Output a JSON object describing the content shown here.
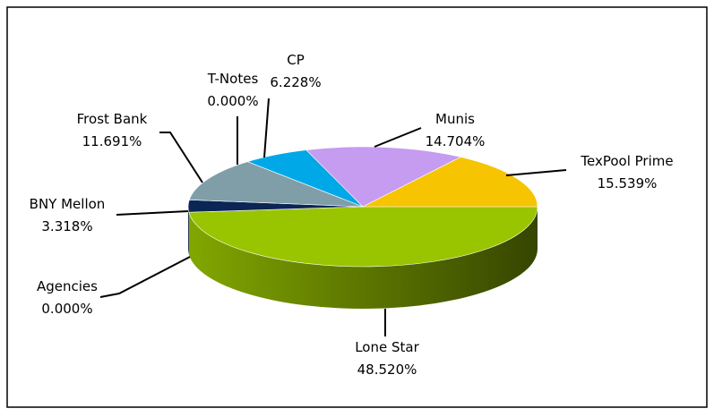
{
  "chart_data": {
    "type": "pie",
    "categories": [
      "Lone Star",
      "Agencies",
      "BNY Mellon",
      "Frost Bank",
      "T-Notes",
      "CP",
      "Munis",
      "TexPool Prime"
    ],
    "values": [
      48.52,
      0,
      3.318,
      11.691,
      0,
      6.228,
      14.704,
      15.539
    ],
    "value_labels": [
      "48.520%",
      "0.000%",
      "3.318%",
      "11.691%",
      "0.000%",
      "6.228%",
      "14.704%",
      "15.539%"
    ],
    "colors": [
      "#99c400",
      "#7a7a7a",
      "#0b2555",
      "#7f9ea8",
      "#9c7ac9",
      "#00a8e8",
      "#c59cf0",
      "#f6c400"
    ]
  }
}
